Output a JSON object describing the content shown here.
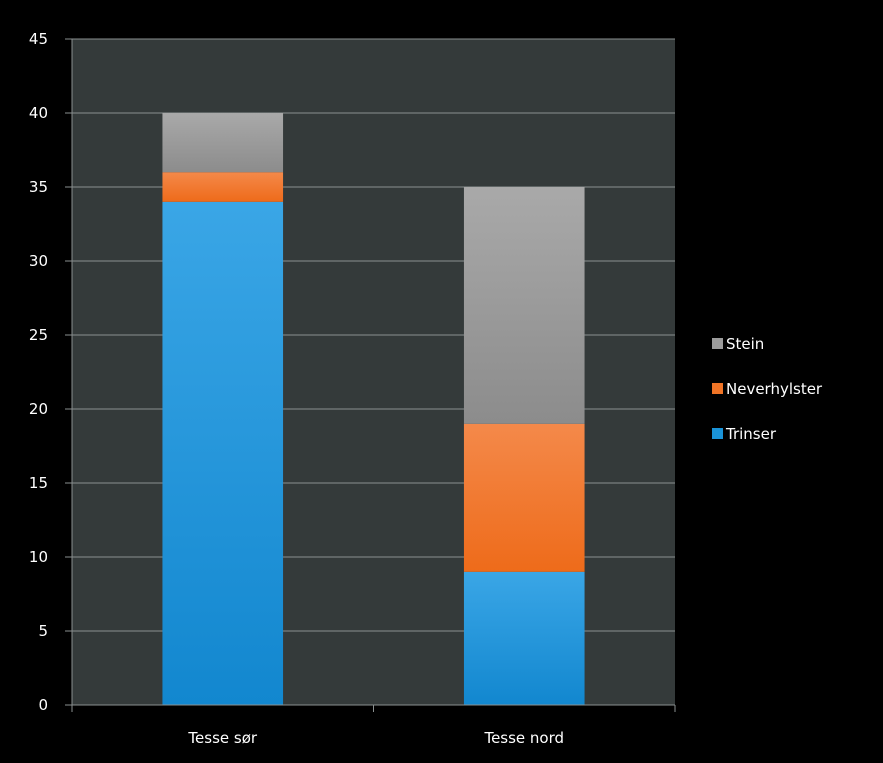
{
  "chart_data": {
    "type": "bar",
    "stacked": true,
    "categories": [
      "Tesse sør",
      "Tesse nord"
    ],
    "series": [
      {
        "name": "Trinser",
        "values": [
          34,
          9
        ],
        "color": "#1a93d8"
      },
      {
        "name": "Neverhylster",
        "values": [
          2,
          10
        ],
        "color": "#f07426"
      },
      {
        "name": "Stein",
        "values": [
          4,
          16
        ],
        "color": "#9b9b9b"
      }
    ],
    "ylim": [
      0,
      45
    ],
    "yticks": [
      0,
      5,
      10,
      15,
      20,
      25,
      30,
      35,
      40,
      45
    ],
    "grid": true,
    "legend_position": "right",
    "legend_order": [
      "Stein",
      "Neverhylster",
      "Trinser"
    ],
    "colors": {
      "background": "#000000",
      "plot_area": "#343a3a",
      "gridline": "#8a9090",
      "text": "#ffffff"
    }
  }
}
